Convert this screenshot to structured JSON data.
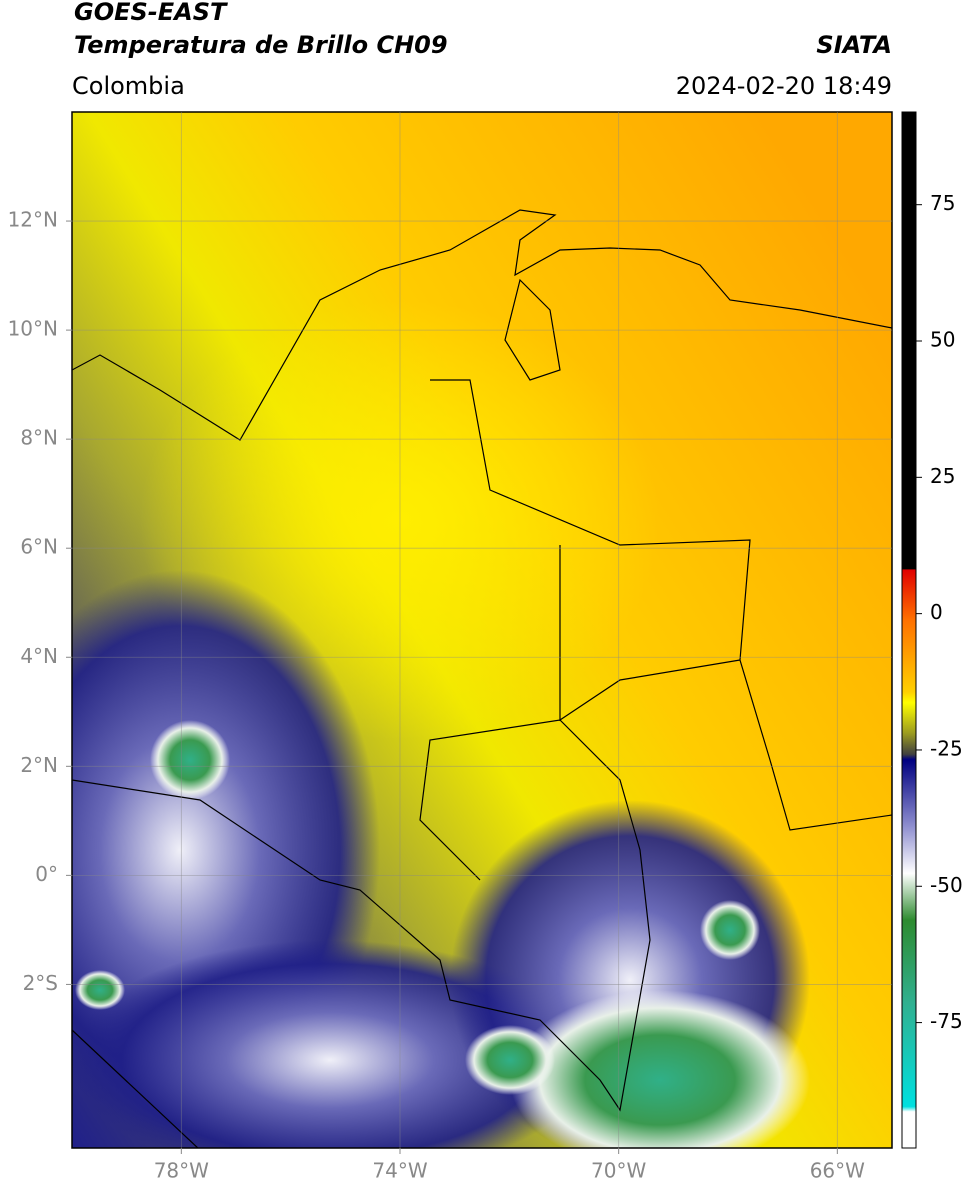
{
  "header": {
    "title": "GOES-EAST",
    "subtitle": "Temperatura de Brillo CH09",
    "region": "Colombia",
    "source": "SIATA",
    "timestamp": "2024-02-20 18:49"
  },
  "map": {
    "xlim": [
      -80,
      -65
    ],
    "ylim": [
      -5,
      14
    ],
    "xticks": [
      {
        "value": -78,
        "label": "78°W"
      },
      {
        "value": -74,
        "label": "74°W"
      },
      {
        "value": -70,
        "label": "70°W"
      },
      {
        "value": -66,
        "label": "66°W"
      }
    ],
    "yticks": [
      {
        "value": 12,
        "label": "12°N"
      },
      {
        "value": 10,
        "label": "10°N"
      },
      {
        "value": 8,
        "label": "8°N"
      },
      {
        "value": 6,
        "label": "6°N"
      },
      {
        "value": 4,
        "label": "4°N"
      },
      {
        "value": 2,
        "label": "2°N"
      },
      {
        "value": 0,
        "label": "0°"
      },
      {
        "value": -2,
        "label": "2°S"
      }
    ],
    "grid": true
  },
  "colorbar": {
    "ylim": [
      -98,
      92
    ],
    "yticks": [
      75,
      50,
      25,
      0,
      -25,
      -50,
      -75
    ]
  }
}
